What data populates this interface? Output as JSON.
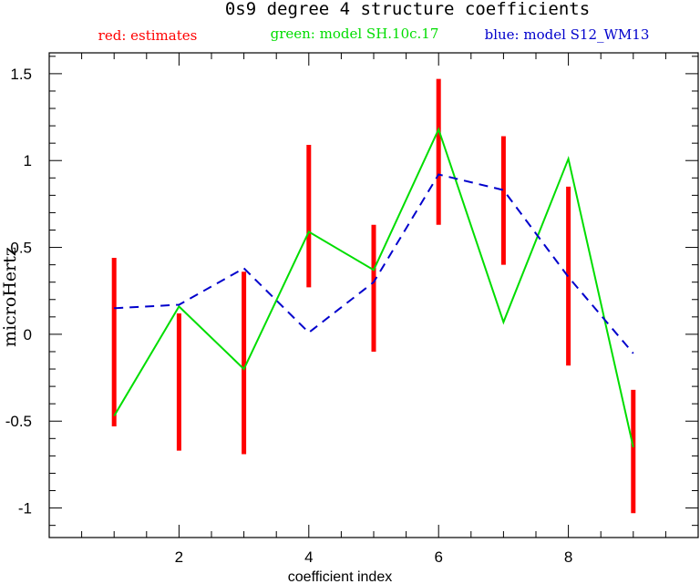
{
  "chart_data": {
    "type": "line",
    "title": "0s9 degree 4 structure coefficients",
    "xlabel": "coefficient index",
    "ylabel": "microHertz",
    "xlim": [
      0,
      10
    ],
    "ylim": [
      -1.17,
      1.62
    ],
    "x_ticks": [
      2,
      4,
      6,
      8
    ],
    "x_tick_labels": [
      "2",
      "4",
      "6",
      "8"
    ],
    "y_ticks": [
      -1,
      -0.5,
      0,
      0.5,
      1,
      1.5
    ],
    "y_tick_labels": [
      "-1",
      "-0.5",
      "0",
      "0.5",
      "1",
      "1.5"
    ],
    "legend": [
      {
        "text": "red: estimates",
        "color": "#ff0000"
      },
      {
        "text": "green: model SH.10c.17",
        "color": "#00dd00"
      },
      {
        "text": "blue: model S12_WM13",
        "color": "#0000cc"
      }
    ],
    "estimates": {
      "color": "#ff0000",
      "x": [
        1,
        2,
        3,
        4,
        5,
        6,
        7,
        8,
        9
      ],
      "low": [
        -0.53,
        -0.67,
        -0.69,
        0.27,
        -0.1,
        0.63,
        0.4,
        -0.18,
        -1.03
      ],
      "high": [
        0.44,
        0.12,
        0.36,
        1.09,
        0.63,
        1.47,
        1.14,
        0.85,
        -0.32
      ]
    },
    "series": [
      {
        "name": "model SH.10c.17",
        "color": "#00dd00",
        "style": "solid",
        "x": [
          1,
          2,
          3,
          4,
          5,
          6,
          7,
          8,
          9
        ],
        "values": [
          -0.47,
          0.16,
          -0.2,
          0.59,
          0.37,
          1.18,
          0.07,
          1.01,
          -0.65
        ]
      },
      {
        "name": "model S12_WM13",
        "color": "#0000cc",
        "style": "dashed",
        "x": [
          1,
          2,
          3,
          4,
          5,
          6,
          7,
          8,
          9
        ],
        "values": [
          0.15,
          0.17,
          0.38,
          0.01,
          0.3,
          0.92,
          0.83,
          0.33,
          -0.11
        ]
      }
    ]
  }
}
